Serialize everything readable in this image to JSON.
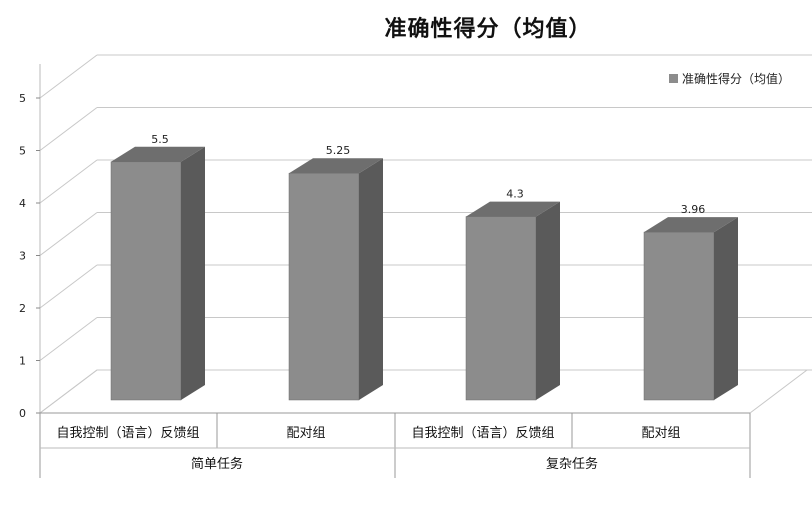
{
  "chart_data": {
    "type": "bar",
    "title": "准确性得分（均值）",
    "categories": [
      "自我控制（语言）反馈组",
      "配对组",
      "自我控制（语言）反馈组",
      "配对组"
    ],
    "groups": [
      "简单任务",
      "复杂任务"
    ],
    "series": [
      {
        "name": "准确性得分（均值）",
        "values": [
          5.5,
          5.25,
          4.3,
          3.96
        ]
      }
    ],
    "data_labels": [
      "5.5",
      "5.25",
      "4.3",
      "3.96"
    ],
    "y_ticks": [
      "0",
      "1",
      "2",
      "3",
      "4",
      "5",
      "5"
    ],
    "ylim": [
      0,
      6
    ],
    "grid": true,
    "legend_position": "top-right",
    "colors": {
      "bar_front": "#8c8c8c",
      "bar_side": "#5a5a5a",
      "bar_top": "#6e6e6e",
      "grid": "#c8c8c8"
    }
  }
}
